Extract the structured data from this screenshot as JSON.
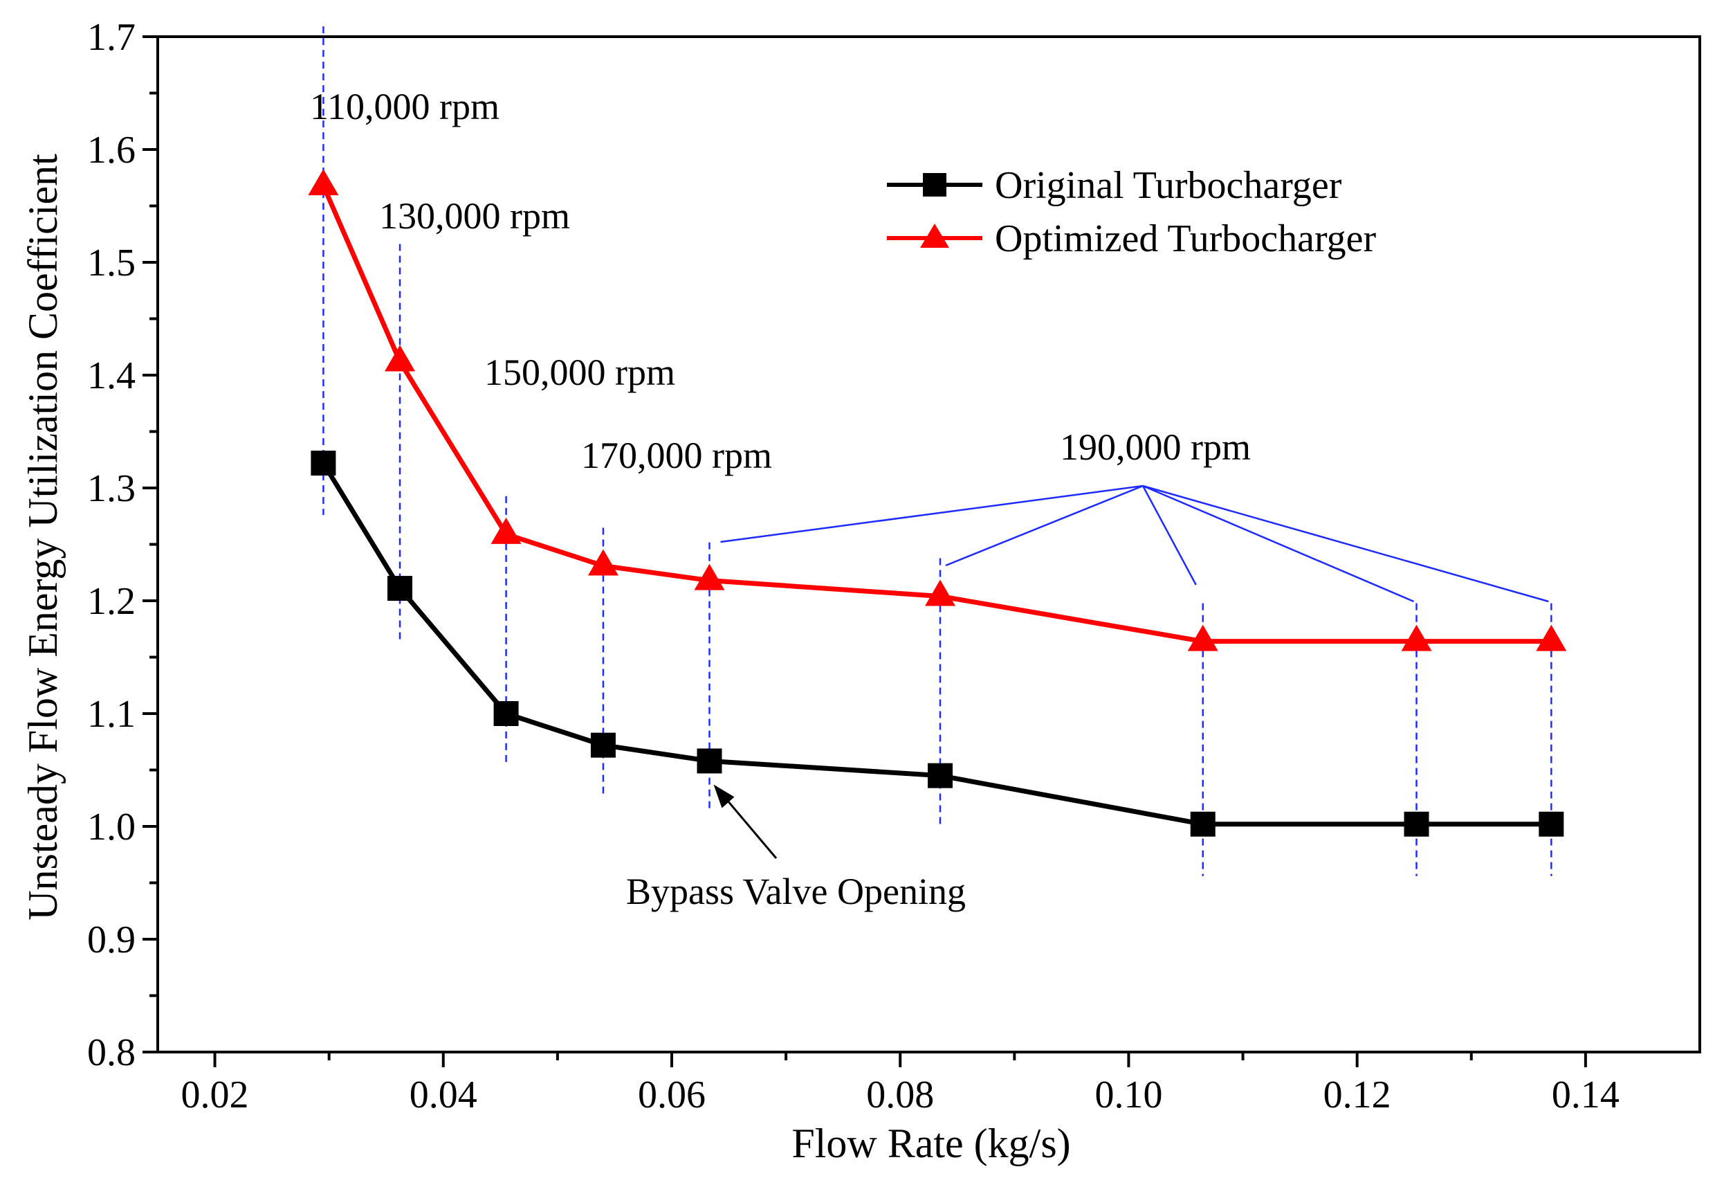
{
  "chart_data": {
    "type": "line",
    "title": "",
    "xlabel": "Flow Rate (kg/s)",
    "ylabel": "Unsteady Flow Energy Utilization Coefficient",
    "xlim": [
      0.015,
      0.15
    ],
    "ylim": [
      0.8,
      1.7
    ],
    "xticks": [
      0.02,
      0.04,
      0.06,
      0.08,
      0.1,
      0.12,
      0.14
    ],
    "xtick_labels": [
      "0.02",
      "0.04",
      "0.06",
      "0.08",
      "0.10",
      "0.12",
      "0.14"
    ],
    "yticks": [
      0.8,
      0.9,
      1.0,
      1.1,
      1.2,
      1.3,
      1.4,
      1.5,
      1.6,
      1.7
    ],
    "ytick_labels": [
      "0.8",
      "0.9",
      "1.0",
      "1.1",
      "1.2",
      "1.3",
      "1.4",
      "1.5",
      "1.6",
      "1.7"
    ],
    "legend_position": "top-right",
    "series": [
      {
        "name": "Original Turbocharger",
        "color": "#000000",
        "marker": "square",
        "x": [
          0.0295,
          0.0362,
          0.0455,
          0.054,
          0.0633,
          0.0835,
          0.1065,
          0.1252,
          0.137
        ],
        "y": [
          1.322,
          1.211,
          1.1,
          1.072,
          1.058,
          1.045,
          1.002,
          1.002,
          1.002
        ]
      },
      {
        "name": "Optimized Turbocharger",
        "color": "#ff0000",
        "marker": "triangle",
        "x": [
          0.0295,
          0.0362,
          0.0455,
          0.054,
          0.0633,
          0.0835,
          0.1065,
          0.1252,
          0.137
        ],
        "y": [
          1.568,
          1.412,
          1.259,
          1.231,
          1.218,
          1.204,
          1.164,
          1.164,
          1.164
        ]
      }
    ],
    "annotations": [
      {
        "text": "110,000 rpm",
        "x": 0.0295
      },
      {
        "text": "130,000 rpm",
        "x": 0.0362
      },
      {
        "text": "150,000 rpm",
        "x": 0.0455
      },
      {
        "text": "170,000 rpm",
        "x": 0.054
      },
      {
        "text": "190,000 rpm",
        "x": [
          0.0633,
          0.0835,
          0.1065,
          0.1252,
          0.137
        ]
      },
      {
        "text": "Bypass Valve Opening",
        "x": 0.0633,
        "y": 1.058
      }
    ]
  }
}
